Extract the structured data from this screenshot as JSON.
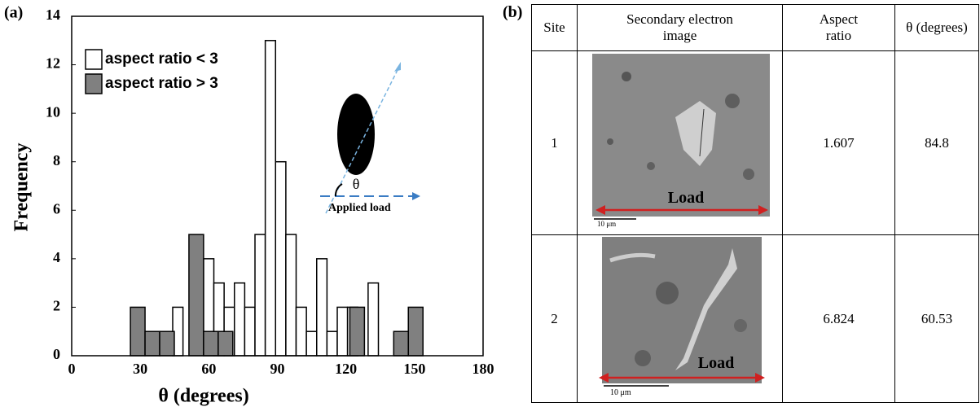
{
  "chart_data": {
    "type": "histogram",
    "label": "(a)",
    "xlabel": "θ (degrees)",
    "ylabel": "Frequency",
    "xlim": [
      0,
      180
    ],
    "xticks": [
      0,
      30,
      60,
      90,
      120,
      150,
      180
    ],
    "ylim": [
      0,
      14
    ],
    "yticks": [
      0,
      2,
      4,
      6,
      8,
      10,
      12,
      14
    ],
    "legend": "upper left",
    "series": [
      {
        "name": "aspect ratio < 3",
        "color": "#ffffff",
        "bins": [
          44.2,
          48.7,
          53.2,
          57.7,
          62.2,
          66.7,
          71.2,
          75.7,
          80.2,
          84.7,
          89.2,
          93.7,
          98.2,
          102.7,
          107.2,
          111.7,
          116.2,
          120.7,
          125.2,
          129.7,
          134.2
        ],
        "values": [
          2,
          0,
          0,
          4,
          3,
          2,
          3,
          2,
          5,
          13,
          8,
          5,
          2,
          1,
          4,
          1,
          2,
          2,
          0,
          3
        ]
      },
      {
        "name": "aspect ratio > 3",
        "color": "#808080",
        "bins": [
          25.7,
          32.1,
          38.5,
          44.9,
          51.3,
          57.7,
          64.1,
          70.5,
          76.9,
          83.3,
          89.7,
          96.1,
          102.5,
          108.9,
          115.3,
          121.7,
          128.1,
          134.5,
          140.9,
          147.3,
          153.7
        ],
        "values": [
          2,
          1,
          1,
          0,
          5,
          1,
          1,
          0,
          0,
          0,
          0,
          0,
          0,
          0,
          0,
          2,
          0,
          0,
          1,
          2
        ]
      }
    ],
    "annotations": [
      "θ",
      "Applied load"
    ]
  },
  "table": {
    "label": "(b)",
    "header": [
      "Site",
      "Secondary electron image",
      "Aspect ratio",
      "θ (degrees)"
    ],
    "rows": [
      {
        "site": "1",
        "load": "Load",
        "scale": "10 μm",
        "aspect_ratio": "1.607",
        "theta": "84.8"
      },
      {
        "site": "2",
        "load": "Load",
        "scale": "10 μm",
        "aspect_ratio": "6.824",
        "theta": "60.53"
      }
    ]
  }
}
